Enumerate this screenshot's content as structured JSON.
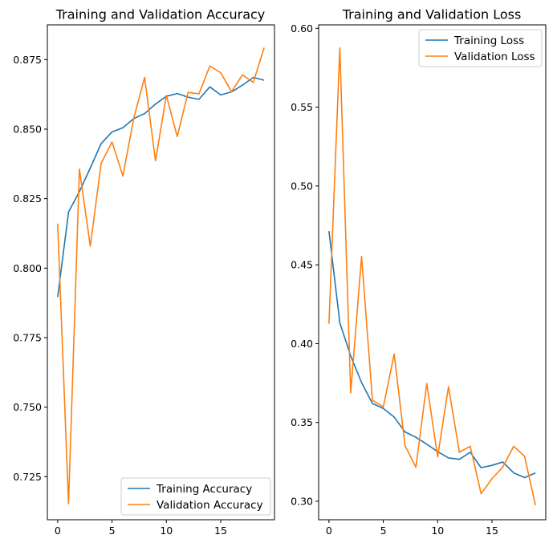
{
  "colors": {
    "train": "#1f77b4",
    "val": "#ff7f0e"
  },
  "chart_data": [
    {
      "type": "line",
      "title": "Training and Validation Accuracy",
      "xlabel": "",
      "ylabel": "",
      "xlim": [
        -0.95,
        19.95
      ],
      "ylim": [
        0.7095,
        0.8875
      ],
      "xticks": [
        0,
        5,
        10,
        15
      ],
      "yticks": [
        0.725,
        0.75,
        0.775,
        0.8,
        0.825,
        0.85,
        0.875
      ],
      "ytick_labels": [
        "0.725",
        "0.750",
        "0.775",
        "0.800",
        "0.825",
        "0.850",
        "0.875"
      ],
      "legend_loc": "lower right",
      "x": [
        0,
        1,
        2,
        3,
        4,
        5,
        6,
        7,
        8,
        9,
        10,
        11,
        12,
        13,
        14,
        15,
        16,
        17,
        18,
        19
      ],
      "series": [
        {
          "name": "Training Accuracy",
          "color": "#1f77b4",
          "values": [
            0.7896,
            0.8202,
            0.8275,
            0.836,
            0.8448,
            0.849,
            0.8505,
            0.8538,
            0.8556,
            0.859,
            0.8618,
            0.8628,
            0.8615,
            0.8607,
            0.8652,
            0.8623,
            0.8634,
            0.8658,
            0.8686,
            0.8676
          ]
        },
        {
          "name": "Validation Accuracy",
          "color": "#ff7f0e",
          "values": [
            0.816,
            0.7153,
            0.8356,
            0.8079,
            0.8377,
            0.8454,
            0.8331,
            0.8539,
            0.8686,
            0.8386,
            0.8621,
            0.8473,
            0.8632,
            0.8627,
            0.8727,
            0.8703,
            0.8635,
            0.8695,
            0.8668,
            0.8793
          ]
        }
      ]
    },
    {
      "type": "line",
      "title": "Training and Validation Loss",
      "xlabel": "",
      "ylabel": "",
      "xlim": [
        -0.95,
        19.95
      ],
      "ylim": [
        0.2883,
        0.6022
      ],
      "xticks": [
        0,
        5,
        10,
        15
      ],
      "yticks": [
        0.3,
        0.35,
        0.4,
        0.45,
        0.5,
        0.55,
        0.6
      ],
      "ytick_labels": [
        "0.30",
        "0.35",
        "0.40",
        "0.45",
        "0.50",
        "0.55",
        "0.60"
      ],
      "legend_loc": "upper right",
      "x": [
        0,
        1,
        2,
        3,
        4,
        5,
        6,
        7,
        8,
        9,
        10,
        11,
        12,
        13,
        14,
        15,
        16,
        17,
        18,
        19
      ],
      "series": [
        {
          "name": "Training Loss",
          "color": "#1f77b4",
          "values": [
            0.4714,
            0.4132,
            0.3922,
            0.3753,
            0.362,
            0.3589,
            0.3534,
            0.344,
            0.3406,
            0.3362,
            0.3315,
            0.3275,
            0.3266,
            0.3311,
            0.3213,
            0.3228,
            0.3249,
            0.318,
            0.315,
            0.318
          ]
        },
        {
          "name": "Validation Loss",
          "color": "#ff7f0e",
          "values": [
            0.4126,
            0.5876,
            0.3687,
            0.4553,
            0.3641,
            0.3599,
            0.3934,
            0.3353,
            0.3216,
            0.3747,
            0.3282,
            0.3727,
            0.3311,
            0.3349,
            0.3048,
            0.3143,
            0.3218,
            0.3349,
            0.3285,
            0.2975
          ]
        }
      ]
    }
  ]
}
